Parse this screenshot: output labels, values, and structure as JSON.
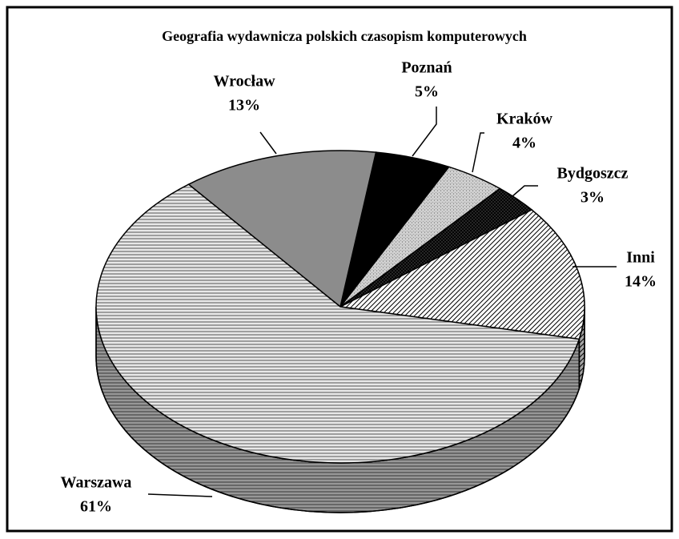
{
  "chart_data": {
    "type": "pie",
    "title": "Geografia wydawnicza polskich czasopism komputerowych",
    "categories": [
      "Inni",
      "Bydgoszcz",
      "Kraków",
      "Poznań",
      "Wrocław",
      "Warszawa"
    ],
    "values": [
      14,
      3,
      4,
      5,
      13,
      61
    ],
    "value_labels": [
      "14%",
      "3%",
      "4%",
      "5%",
      "13%",
      "61%"
    ],
    "colors": [
      "#ffffff",
      "#333333",
      "#d0d0d0",
      "#000000",
      "#8c8c8c",
      "#e8e8e8"
    ]
  }
}
